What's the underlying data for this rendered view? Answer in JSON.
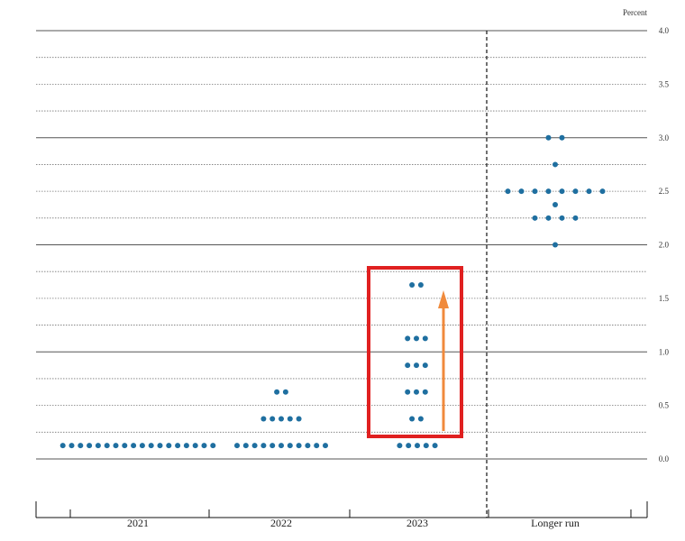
{
  "chart_data": {
    "type": "scatter",
    "unit_label": "Percent",
    "categories": [
      "2021",
      "2022",
      "2023",
      "Longer run"
    ],
    "ylim": [
      -0.5,
      4.0
    ],
    "y_ticks": [
      "4.0",
      "3.5",
      "3.0",
      "2.5",
      "2.0",
      "1.5",
      "1.0",
      "0.5",
      "0.0"
    ],
    "grid": "horizontal lines every 0.25; solid at whole numbers and 0.0",
    "separator": "dashed vertical line before Longer run",
    "series": [
      {
        "category": "2021",
        "points": [
          {
            "y": 0.125,
            "count": 18
          }
        ]
      },
      {
        "category": "2022",
        "points": [
          {
            "y": 0.125,
            "count": 11
          },
          {
            "y": 0.375,
            "count": 5
          },
          {
            "y": 0.625,
            "count": 2
          }
        ]
      },
      {
        "category": "2023",
        "points": [
          {
            "y": 0.125,
            "count": 5
          },
          {
            "y": 0.375,
            "count": 2
          },
          {
            "y": 0.625,
            "count": 3
          },
          {
            "y": 0.875,
            "count": 3
          },
          {
            "y": 1.125,
            "count": 3
          },
          {
            "y": 1.625,
            "count": 2
          }
        ]
      },
      {
        "category": "Longer run",
        "points": [
          {
            "y": 2.0,
            "count": 1
          },
          {
            "y": 2.25,
            "count": 4
          },
          {
            "y": 2.375,
            "count": 1
          },
          {
            "y": 2.5,
            "count": 8
          },
          {
            "y": 2.75,
            "count": 1
          },
          {
            "y": 3.0,
            "count": 2
          }
        ]
      }
    ],
    "highlight": {
      "category": "2023",
      "box_color": "#e02020",
      "arrow_color": "#f08a3c"
    },
    "dot_color": "#1f6fa0"
  }
}
